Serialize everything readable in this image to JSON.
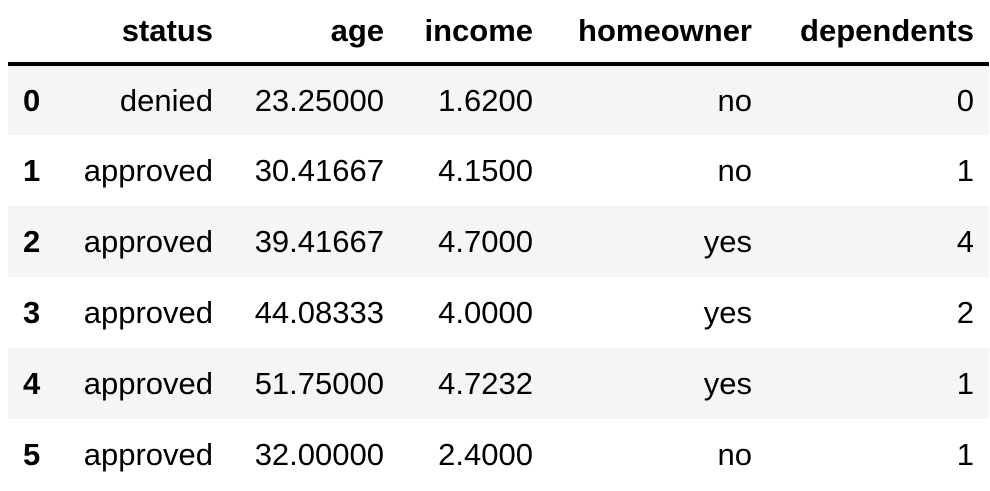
{
  "table": {
    "columns": [
      "",
      "status",
      "age",
      "income",
      "homeowner",
      "dependents"
    ],
    "rows": [
      {
        "index": "0",
        "status": "denied",
        "age": "23.25000",
        "income": "1.6200",
        "homeowner": "no",
        "dependents": "0"
      },
      {
        "index": "1",
        "status": "approved",
        "age": "30.41667",
        "income": "4.1500",
        "homeowner": "no",
        "dependents": "1"
      },
      {
        "index": "2",
        "status": "approved",
        "age": "39.41667",
        "income": "4.7000",
        "homeowner": "yes",
        "dependents": "4"
      },
      {
        "index": "3",
        "status": "approved",
        "age": "44.08333",
        "income": "4.0000",
        "homeowner": "yes",
        "dependents": "2"
      },
      {
        "index": "4",
        "status": "approved",
        "age": "51.75000",
        "income": "4.7232",
        "homeowner": "yes",
        "dependents": "1"
      },
      {
        "index": "5",
        "status": "approved",
        "age": "32.00000",
        "income": "2.4000",
        "homeowner": "no",
        "dependents": "1"
      }
    ]
  },
  "colors": {
    "stripe": "#f5f5f5",
    "background": "#ffffff",
    "text": "#000000",
    "header_rule": "#000000"
  }
}
